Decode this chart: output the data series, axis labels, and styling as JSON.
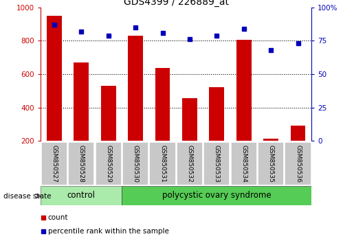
{
  "title": "GDS4399 / 226889_at",
  "samples": [
    "GSM850527",
    "GSM850528",
    "GSM850529",
    "GSM850530",
    "GSM850531",
    "GSM850532",
    "GSM850533",
    "GSM850534",
    "GSM850535",
    "GSM850536"
  ],
  "counts": [
    950,
    668,
    530,
    830,
    635,
    455,
    520,
    805,
    215,
    290
  ],
  "percentiles": [
    87,
    82,
    79,
    85,
    81,
    76,
    79,
    84,
    68,
    73
  ],
  "ylim_left": [
    200,
    1000
  ],
  "ylim_right": [
    0,
    100
  ],
  "yticks_left": [
    200,
    400,
    600,
    800,
    1000
  ],
  "yticks_right": [
    0,
    25,
    50,
    75,
    100
  ],
  "bar_color": "#cc0000",
  "dot_color": "#0000bb",
  "control_color": "#aaeaaa",
  "pcos_color": "#55cc55",
  "label_bg_color": "#c8c8c8",
  "control_label": "control",
  "pcos_label": "polycystic ovary syndrome",
  "n_control": 3,
  "n_pcos": 7,
  "disease_state_label": "disease state",
  "legend_count": "count",
  "legend_percentile": "percentile rank within the sample",
  "bar_width": 0.55,
  "grid_dotted_yticks": [
    400,
    600,
    800
  ]
}
